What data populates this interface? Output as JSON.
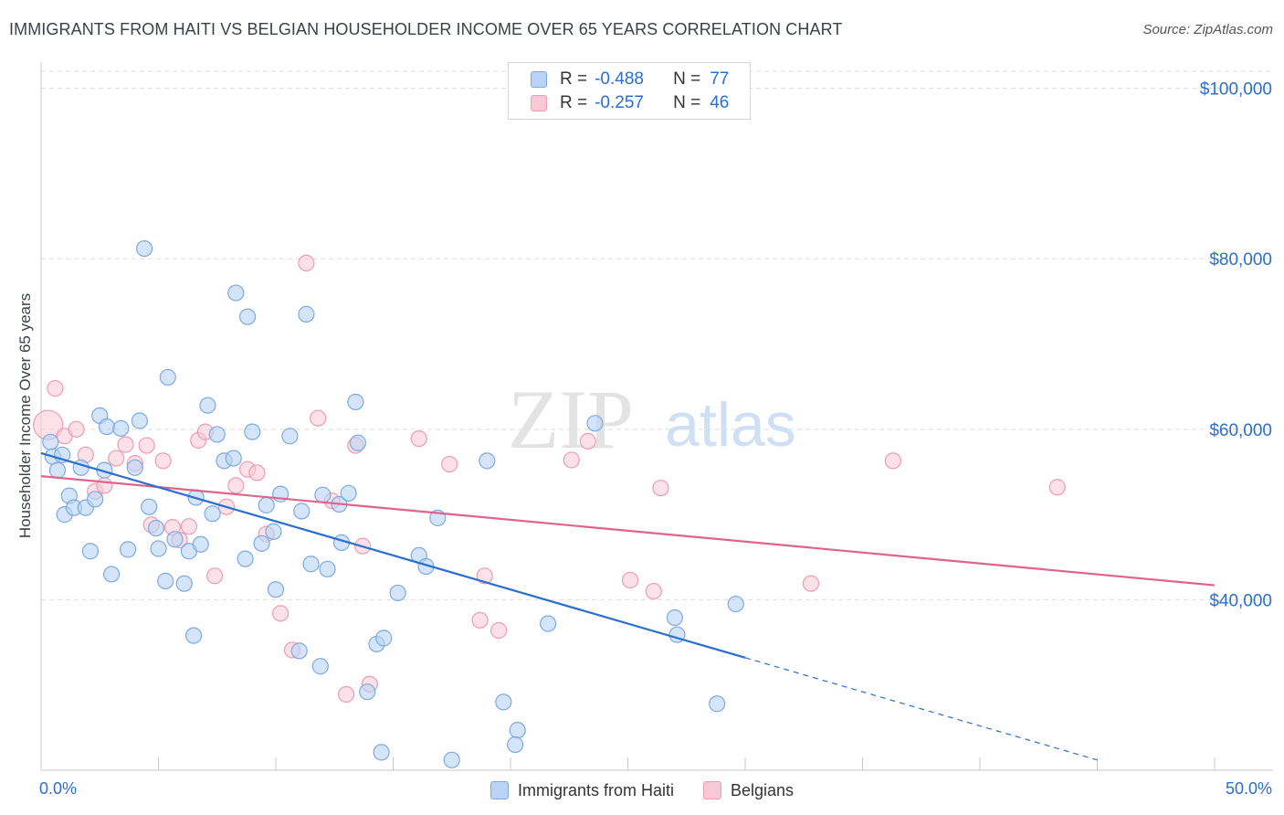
{
  "title": "IMMIGRANTS FROM HAITI VS BELGIAN HOUSEHOLDER INCOME OVER 65 YEARS CORRELATION CHART",
  "source": "Source: ZipAtlas.com",
  "watermark": {
    "zip": "ZIP",
    "atlas": "atlas"
  },
  "legend": {
    "r_label": "R =",
    "n_label": "N =",
    "series1": {
      "r": "-0.488",
      "n": "77"
    },
    "series2": {
      "r": "-0.257",
      "n": "46"
    }
  },
  "colors": {
    "blue_fill": "#b8d3f5",
    "blue_stroke": "#7ea9e0",
    "blue_line": "#2a6fcf",
    "pink_fill": "#f9c8d6",
    "pink_stroke": "#ee9bb3",
    "pink_line": "#e0628f",
    "grid": "#dcdcdc",
    "tick_text": "#2a6fcf"
  },
  "chart_data": {
    "type": "scatter",
    "title": "IMMIGRANTS FROM HAITI VS BELGIAN HOUSEHOLDER INCOME OVER 65 YEARS CORRELATION CHART",
    "xlabel": "",
    "ylabel": "Householder Income Over 65 years",
    "xlim": [
      0,
      50
    ],
    "ylim": [
      20000,
      102000
    ],
    "x_tick_labels": [
      "0.0%",
      "50.0%"
    ],
    "y_ticks": [
      40000,
      60000,
      80000,
      100000
    ],
    "y_tick_labels": [
      "$40,000",
      "$60,000",
      "$80,000",
      "$100,000"
    ],
    "grid": true,
    "legend_position": "top-center",
    "series": [
      {
        "name": "Immigrants from Haiti",
        "r": -0.488,
        "n": 77,
        "trend": {
          "x_start": 0,
          "y_start": 57200,
          "x_end": 30,
          "y_end": 33200,
          "dashed_to_x": 45,
          "dashed_to_y": 21200
        },
        "points": [
          [
            0.4,
            58500
          ],
          [
            0.5,
            56800
          ],
          [
            0.7,
            55200
          ],
          [
            0.9,
            57000
          ],
          [
            1.0,
            50000
          ],
          [
            1.2,
            52200
          ],
          [
            1.4,
            50800
          ],
          [
            1.7,
            55500
          ],
          [
            1.9,
            50800
          ],
          [
            2.1,
            45700
          ],
          [
            2.3,
            51800
          ],
          [
            2.5,
            61600
          ],
          [
            2.8,
            60300
          ],
          [
            2.7,
            55200
          ],
          [
            3.0,
            43000
          ],
          [
            3.4,
            60100
          ],
          [
            3.7,
            45900
          ],
          [
            4.0,
            55500
          ],
          [
            4.2,
            61000
          ],
          [
            4.4,
            81200
          ],
          [
            4.6,
            50900
          ],
          [
            4.9,
            48400
          ],
          [
            5.0,
            46000
          ],
          [
            5.3,
            42200
          ],
          [
            5.4,
            66100
          ],
          [
            5.7,
            47100
          ],
          [
            6.1,
            41900
          ],
          [
            6.3,
            45700
          ],
          [
            6.5,
            35800
          ],
          [
            6.6,
            52000
          ],
          [
            6.8,
            46500
          ],
          [
            7.1,
            62800
          ],
          [
            7.3,
            50100
          ],
          [
            7.5,
            59400
          ],
          [
            7.8,
            56300
          ],
          [
            8.2,
            56600
          ],
          [
            8.3,
            76000
          ],
          [
            8.8,
            73200
          ],
          [
            9.0,
            59700
          ],
          [
            8.7,
            44800
          ],
          [
            9.4,
            46600
          ],
          [
            9.6,
            51100
          ],
          [
            9.9,
            48000
          ],
          [
            10.0,
            41200
          ],
          [
            10.2,
            52400
          ],
          [
            10.6,
            59200
          ],
          [
            11.0,
            34000
          ],
          [
            11.1,
            50400
          ],
          [
            11.3,
            73500
          ],
          [
            11.5,
            44200
          ],
          [
            11.9,
            32200
          ],
          [
            12.0,
            52300
          ],
          [
            12.2,
            43600
          ],
          [
            12.7,
            51200
          ],
          [
            12.8,
            46700
          ],
          [
            13.1,
            52500
          ],
          [
            13.5,
            58400
          ],
          [
            13.4,
            63200
          ],
          [
            13.9,
            29200
          ],
          [
            14.3,
            34800
          ],
          [
            14.6,
            35500
          ],
          [
            15.2,
            40800
          ],
          [
            16.1,
            45200
          ],
          [
            16.4,
            43900
          ],
          [
            16.9,
            49600
          ],
          [
            17.5,
            21200
          ],
          [
            19.0,
            56300
          ],
          [
            19.7,
            28000
          ],
          [
            20.3,
            24700
          ],
          [
            20.2,
            23000
          ],
          [
            21.6,
            37200
          ],
          [
            23.6,
            60700
          ],
          [
            27.0,
            37900
          ],
          [
            27.1,
            35900
          ],
          [
            28.8,
            27800
          ],
          [
            29.6,
            39500
          ],
          [
            14.5,
            22100
          ]
        ]
      },
      {
        "name": "Belgians",
        "r": -0.257,
        "n": 46,
        "trend": {
          "x_start": 0,
          "y_start": 54500,
          "x_end": 50,
          "y_end": 41700
        },
        "points": [
          [
            0.3,
            60500
          ],
          [
            0.6,
            64800
          ],
          [
            1.0,
            59200
          ],
          [
            1.5,
            60000
          ],
          [
            1.9,
            57000
          ],
          [
            2.3,
            52700
          ],
          [
            2.7,
            53400
          ],
          [
            3.2,
            56600
          ],
          [
            3.6,
            58200
          ],
          [
            4.0,
            56000
          ],
          [
            4.5,
            58100
          ],
          [
            4.7,
            48800
          ],
          [
            5.2,
            56300
          ],
          [
            5.6,
            48500
          ],
          [
            5.9,
            47000
          ],
          [
            6.3,
            48600
          ],
          [
            6.7,
            58700
          ],
          [
            7.0,
            59700
          ],
          [
            7.4,
            42800
          ],
          [
            7.9,
            50900
          ],
          [
            8.3,
            53400
          ],
          [
            8.8,
            55300
          ],
          [
            9.2,
            54900
          ],
          [
            9.6,
            47700
          ],
          [
            10.2,
            38400
          ],
          [
            10.7,
            34100
          ],
          [
            11.3,
            79500
          ],
          [
            11.8,
            61300
          ],
          [
            12.4,
            51600
          ],
          [
            13.0,
            28900
          ],
          [
            13.4,
            58100
          ],
          [
            13.7,
            46300
          ],
          [
            14.0,
            30100
          ],
          [
            16.1,
            58900
          ],
          [
            17.4,
            55900
          ],
          [
            18.7,
            37600
          ],
          [
            18.9,
            42800
          ],
          [
            19.5,
            36400
          ],
          [
            22.6,
            56400
          ],
          [
            23.3,
            58600
          ],
          [
            25.1,
            42300
          ],
          [
            26.1,
            41000
          ],
          [
            26.4,
            53100
          ],
          [
            32.8,
            41900
          ],
          [
            36.3,
            56300
          ],
          [
            43.3,
            53200
          ]
        ]
      }
    ]
  },
  "bottom_legend": {
    "item1": "Immigrants from Haiti",
    "item2": "Belgians"
  }
}
